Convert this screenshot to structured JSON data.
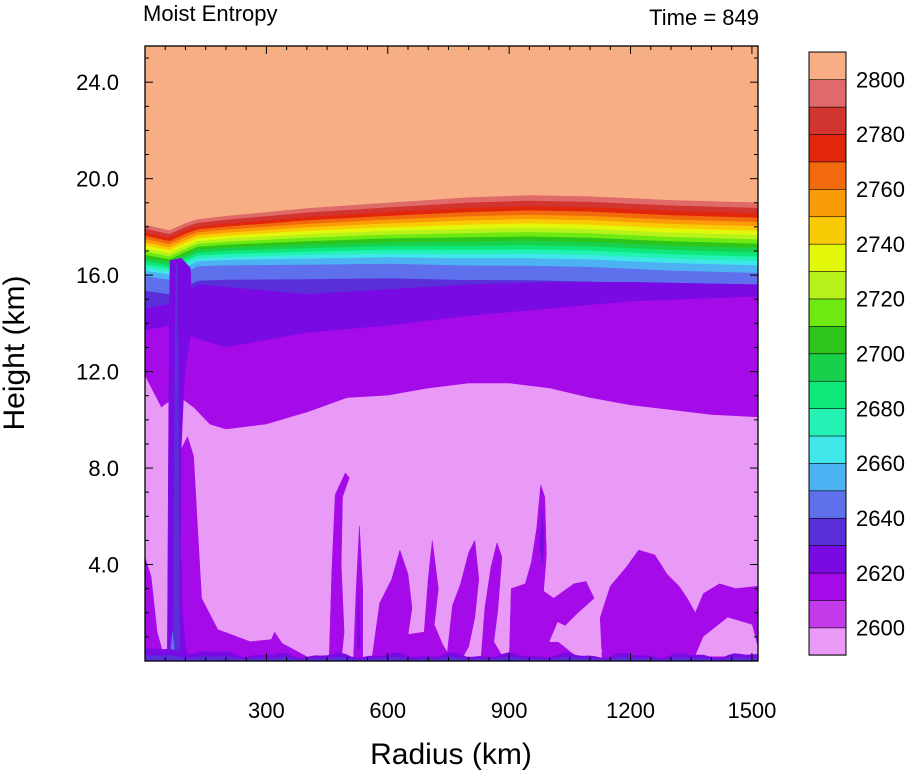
{
  "chart_data": {
    "type": "heatmap",
    "title": "Moist Entropy",
    "subtitle": "Time = 849",
    "xlabel": "Radius (km)",
    "ylabel": "Height (km)",
    "xlim": [
      0,
      1515
    ],
    "ylim": [
      0,
      25.5
    ],
    "x_ticks": [
      "300",
      "600",
      "900",
      "1200",
      "1500"
    ],
    "x_tick_values": [
      300,
      600,
      900,
      1200,
      1500
    ],
    "y_ticks": [
      "4.0",
      "8.0",
      "12.0",
      "16.0",
      "20.0",
      "24.0"
    ],
    "y_tick_values": [
      4,
      8,
      12,
      16,
      20,
      24
    ],
    "colorbar_labels": [
      "2600",
      "2620",
      "2640",
      "2660",
      "2680",
      "2700",
      "2720",
      "2740",
      "2760",
      "2780",
      "2800"
    ],
    "levels": [
      2590,
      2600,
      2610,
      2620,
      2630,
      2640,
      2650,
      2660,
      2670,
      2680,
      2690,
      2700,
      2710,
      2720,
      2730,
      2740,
      2750,
      2760,
      2770,
      2780,
      2790,
      2800
    ],
    "colors": [
      "#E99AF7",
      "#C33AEB",
      "#A50AE8",
      "#7A0AE3",
      "#5A2ED9",
      "#5E70EC",
      "#4CB2F3",
      "#40E7E8",
      "#24F2B5",
      "#0EE87A",
      "#19D04D",
      "#2EC51A",
      "#6EEA12",
      "#B7F21A",
      "#E3F70B",
      "#F9CB05",
      "#FB9B06",
      "#F26A0E",
      "#E2260C",
      "#D23430",
      "#E06A6A",
      "#F8AE84"
    ],
    "grid": false,
    "legend": "colorbar-right"
  }
}
